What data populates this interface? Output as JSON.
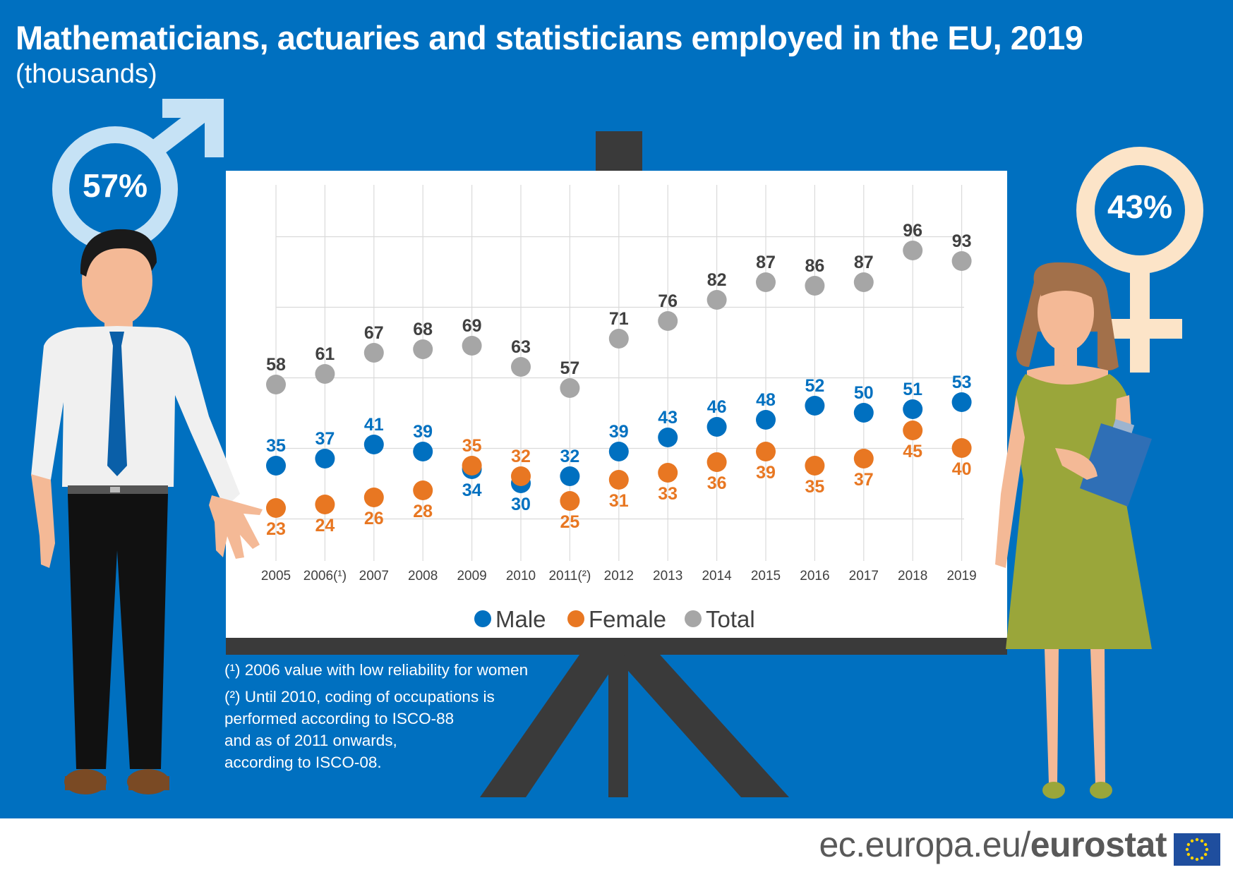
{
  "header": {
    "title": "Mathematicians, actuaries and statisticians employed in the EU, 2019",
    "subtitle": "(thousands)"
  },
  "male_share": "57%",
  "female_share": "43%",
  "notes": {
    "note1": "(¹) 2006 value with low reliability for women",
    "note2_lines": [
      "(²) Until 2010, coding of occupations is",
      "performed according to ISCO-88",
      "and as of 2011 onwards,",
      "according to ISCO-08."
    ]
  },
  "footer": {
    "url_prefix": "ec.europa.eu/",
    "brand": "eurostat"
  },
  "colors": {
    "background": "#0070C0",
    "male": "#0070C0",
    "female": "#E87722",
    "total": "#A6A6A6",
    "total_label": "#404040",
    "male_symbol": "#C6E2F5",
    "female_symbol": "#FCE4C8"
  },
  "icons": [
    "male-symbol-icon",
    "female-symbol-icon",
    "eu-flag-icon"
  ],
  "chart_data": {
    "type": "scatter",
    "title": "Mathematicians, actuaries and statisticians employed in the EU, 2019",
    "subtitle": "(thousands)",
    "categories": [
      "2005",
      "2006(¹)",
      "2007",
      "2008",
      "2009",
      "2010",
      "2011(²)",
      "2012",
      "2013",
      "2014",
      "2015",
      "2016",
      "2017",
      "2018",
      "2019"
    ],
    "series": [
      {
        "name": "Male",
        "color": "#0070C0",
        "values": [
          35,
          37,
          41,
          39,
          34,
          30,
          32,
          39,
          43,
          46,
          48,
          52,
          50,
          51,
          53
        ]
      },
      {
        "name": "Female",
        "color": "#E87722",
        "values": [
          23,
          24,
          26,
          28,
          35,
          32,
          25,
          31,
          33,
          36,
          39,
          35,
          37,
          45,
          40
        ]
      },
      {
        "name": "Total",
        "color": "#A6A6A6",
        "values": [
          58,
          61,
          67,
          68,
          69,
          63,
          57,
          71,
          76,
          82,
          87,
          86,
          87,
          96,
          93
        ]
      }
    ],
    "ylim": [
      20,
      100
    ],
    "grid": true,
    "legend_position": "bottom"
  }
}
